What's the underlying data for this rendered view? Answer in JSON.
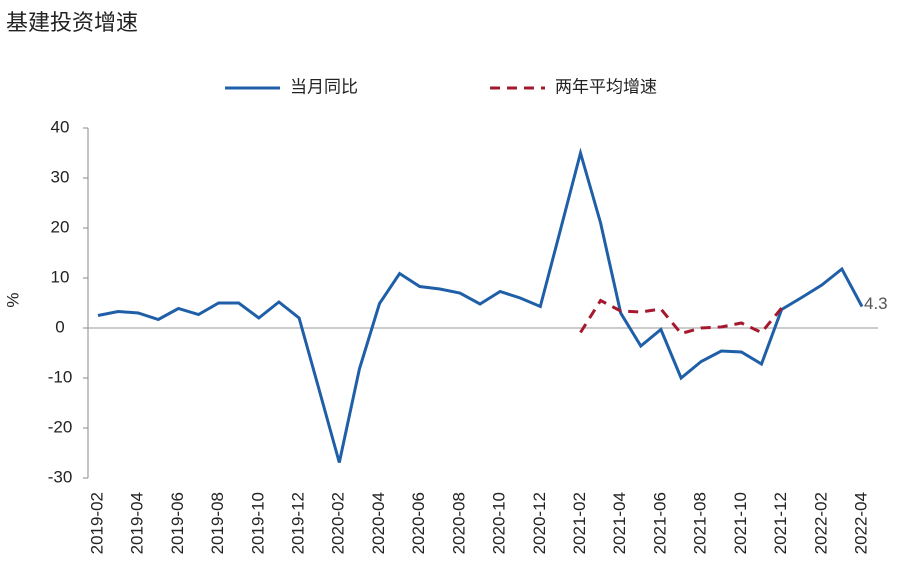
{
  "chart_data": {
    "type": "line",
    "title": "基建投资增速",
    "y_label": "%",
    "categories": [
      "2019-02",
      null,
      "2019-04",
      null,
      "2019-06",
      null,
      "2019-08",
      null,
      "2019-10",
      null,
      "2019-12",
      null,
      "2020-02",
      null,
      "2020-04",
      null,
      "2020-06",
      null,
      "2020-08",
      null,
      "2020-10",
      null,
      "2020-12",
      null,
      "2021-02",
      null,
      "2021-04",
      null,
      "2021-06",
      null,
      "2021-08",
      null,
      "2021-10",
      null,
      "2021-12",
      null,
      "2022-02",
      null,
      "2022-04"
    ],
    "series": [
      {
        "name": "当月同比",
        "color": "#1f5fa8",
        "dash": false,
        "values": [
          2.5,
          3.3,
          3.0,
          1.7,
          3.9,
          2.7,
          5.0,
          5.0,
          2.0,
          5.2,
          2.0,
          -12.4,
          -26.9,
          -8.2,
          4.9,
          10.9,
          8.3,
          7.8,
          7.0,
          4.8,
          7.3,
          6.0,
          4.3,
          19.6,
          35.0,
          21.0,
          3.0,
          -3.6,
          -0.3,
          -10.0,
          -6.7,
          -4.6,
          -4.8,
          -7.2,
          3.7,
          6.1,
          8.6,
          11.8,
          4.3
        ]
      },
      {
        "name": "两年平均增速",
        "color": "#a5192e",
        "dash": true,
        "values": [
          null,
          null,
          null,
          null,
          null,
          null,
          null,
          null,
          null,
          null,
          null,
          null,
          null,
          null,
          null,
          null,
          null,
          null,
          null,
          null,
          null,
          null,
          null,
          null,
          -0.9,
          5.5,
          3.4,
          3.2,
          3.8,
          -1.1,
          0.0,
          0.2,
          1.0,
          -0.9,
          4.0,
          null,
          null,
          null,
          null
        ]
      }
    ],
    "ylim": [
      -30,
      40
    ],
    "yticks": [
      -30,
      -20,
      -10,
      0,
      10,
      20,
      30,
      40
    ],
    "grid": false,
    "legend": "top"
  }
}
